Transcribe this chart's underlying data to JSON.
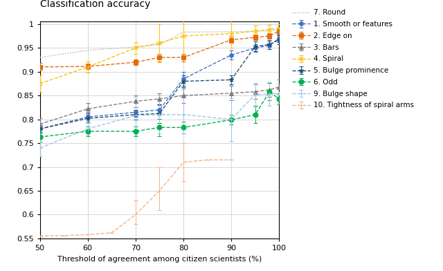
{
  "title": "Classification accuracy",
  "xlabel": "Threshold of agreement among citizen scientists (%)",
  "xlim": [
    50,
    100
  ],
  "ylim": [
    0.55,
    1.005
  ],
  "xticks": [
    50,
    60,
    70,
    80,
    90,
    100
  ],
  "yticks": [
    0.55,
    0.6,
    0.65,
    0.7,
    0.75,
    0.8,
    0.85,
    0.9,
    0.95,
    1.0
  ],
  "series": [
    {
      "label": "1. Smooth or features",
      "color": "#4472C4",
      "linestyle": "--",
      "marker": "o",
      "markersize": 4,
      "x": [
        50,
        60,
        70,
        75,
        80,
        90,
        95,
        98,
        100
      ],
      "y": [
        0.78,
        0.805,
        0.815,
        0.82,
        0.885,
        0.935,
        0.95,
        0.955,
        0.97
      ],
      "yerr_lo": [
        0.012,
        0.01,
        0.01,
        0.01,
        0.015,
        0.01,
        0.008,
        0.008,
        0.008
      ],
      "yerr_hi": [
        0.012,
        0.01,
        0.01,
        0.01,
        0.015,
        0.01,
        0.008,
        0.008,
        0.008
      ]
    },
    {
      "label": "2. Edge on",
      "color": "#E36C09",
      "linestyle": "--",
      "marker": "s",
      "markersize": 4,
      "x": [
        50,
        60,
        70,
        75,
        80,
        90,
        95,
        98,
        100
      ],
      "y": [
        0.91,
        0.911,
        0.92,
        0.93,
        0.93,
        0.967,
        0.972,
        0.975,
        0.985
      ],
      "yerr_lo": [
        0.008,
        0.006,
        0.006,
        0.008,
        0.008,
        0.006,
        0.006,
        0.006,
        0.006
      ],
      "yerr_hi": [
        0.008,
        0.006,
        0.006,
        0.008,
        0.008,
        0.006,
        0.006,
        0.006,
        0.006
      ]
    },
    {
      "label": "3. Bars",
      "color": "#7F7F7F",
      "linestyle": "--",
      "marker": "^",
      "markersize": 4,
      "x": [
        50,
        60,
        70,
        75,
        80,
        90,
        95,
        98,
        100
      ],
      "y": [
        0.79,
        0.822,
        0.838,
        0.843,
        0.85,
        0.855,
        0.858,
        0.862,
        0.868
      ],
      "yerr_lo": [
        0.012,
        0.012,
        0.012,
        0.012,
        0.015,
        0.015,
        0.015,
        0.015,
        0.015
      ],
      "yerr_hi": [
        0.012,
        0.012,
        0.012,
        0.012,
        0.015,
        0.015,
        0.015,
        0.015,
        0.015
      ]
    },
    {
      "label": "4. Spiral",
      "color": "#FFC000",
      "linestyle": "--",
      "marker": "x",
      "markersize": 5,
      "x": [
        50,
        60,
        70,
        75,
        80,
        90,
        95,
        98,
        100
      ],
      "y": [
        0.875,
        0.91,
        0.95,
        0.96,
        0.975,
        0.98,
        0.985,
        0.988,
        0.992
      ],
      "yerr_lo": [
        0.018,
        0.012,
        0.012,
        0.04,
        0.04,
        0.03,
        0.012,
        0.01,
        0.008
      ],
      "yerr_hi": [
        0.018,
        0.012,
        0.012,
        0.04,
        0.04,
        0.03,
        0.012,
        0.01,
        0.008
      ]
    },
    {
      "label": "5. Bulge prominence",
      "color": "#1F4E79",
      "linestyle": "--",
      "marker": "*",
      "markersize": 5,
      "x": [
        50,
        60,
        70,
        75,
        80,
        90,
        95,
        98,
        100
      ],
      "y": [
        0.78,
        0.802,
        0.81,
        0.812,
        0.88,
        0.883,
        0.953,
        0.957,
        0.967
      ],
      "yerr_lo": [
        0.008,
        0.01,
        0.01,
        0.02,
        0.012,
        0.01,
        0.01,
        0.01,
        0.01
      ],
      "yerr_hi": [
        0.008,
        0.01,
        0.01,
        0.02,
        0.012,
        0.01,
        0.01,
        0.01,
        0.01
      ]
    },
    {
      "label": "6. Odd",
      "color": "#00B050",
      "linestyle": "--",
      "marker": "o",
      "markersize": 5,
      "x": [
        50,
        60,
        70,
        75,
        80,
        90,
        95,
        98,
        100
      ],
      "y": [
        0.763,
        0.775,
        0.775,
        0.783,
        0.783,
        0.799,
        0.81,
        0.858,
        0.843
      ],
      "yerr_lo": [
        0.01,
        0.01,
        0.01,
        0.018,
        0.012,
        0.01,
        0.018,
        0.018,
        0.012
      ],
      "yerr_hi": [
        0.01,
        0.01,
        0.01,
        0.018,
        0.012,
        0.01,
        0.018,
        0.018,
        0.012
      ]
    },
    {
      "label": "7. Round",
      "color": "#ABABAB",
      "linestyle": ":",
      "marker": null,
      "markersize": 0,
      "x": [
        50,
        60,
        70,
        75,
        80,
        90,
        95,
        98,
        100
      ],
      "y": [
        0.93,
        0.945,
        0.952,
        0.957,
        0.983,
        0.984,
        0.985,
        0.986,
        0.987
      ],
      "yerr_lo": [
        0.0,
        0.0,
        0.0,
        0.0,
        0.0,
        0.0,
        0.0,
        0.0,
        0.0
      ],
      "yerr_hi": [
        0.0,
        0.0,
        0.0,
        0.0,
        0.0,
        0.0,
        0.0,
        0.0,
        0.0
      ]
    },
    {
      "label": "9. Bulge shape",
      "color": "#9DC3E6",
      "linestyle": "--",
      "marker": "+",
      "markersize": 5,
      "x": [
        50,
        60,
        70,
        75,
        80,
        90,
        95,
        98,
        100
      ],
      "y": [
        0.74,
        0.78,
        0.808,
        0.81,
        0.81,
        0.8,
        0.852,
        0.853,
        0.855
      ],
      "yerr_lo": [
        0.018,
        0.012,
        0.04,
        0.04,
        0.04,
        0.045,
        0.025,
        0.025,
        0.02
      ],
      "yerr_hi": [
        0.018,
        0.012,
        0.04,
        0.04,
        0.04,
        0.045,
        0.025,
        0.025,
        0.02
      ]
    },
    {
      "label": "10. Tightness of spiral arms",
      "color": "#F4B183",
      "linestyle": "--",
      "marker": null,
      "markersize": 0,
      "x": [
        50,
        55,
        60,
        65,
        70,
        75,
        80,
        85,
        90
      ],
      "y": [
        0.555,
        0.556,
        0.558,
        0.562,
        0.6,
        0.65,
        0.71,
        0.715,
        0.715
      ],
      "yerr_lo": [
        0.0,
        0.0,
        0.0,
        0.0,
        0.02,
        0.04,
        0.04,
        0.0,
        0.0
      ],
      "yerr_hi": [
        0.0,
        0.0,
        0.0,
        0.0,
        0.03,
        0.05,
        0.04,
        0.0,
        0.0
      ]
    }
  ],
  "background_color": "#FFFFFF",
  "grid_color": "#C8C8C8"
}
